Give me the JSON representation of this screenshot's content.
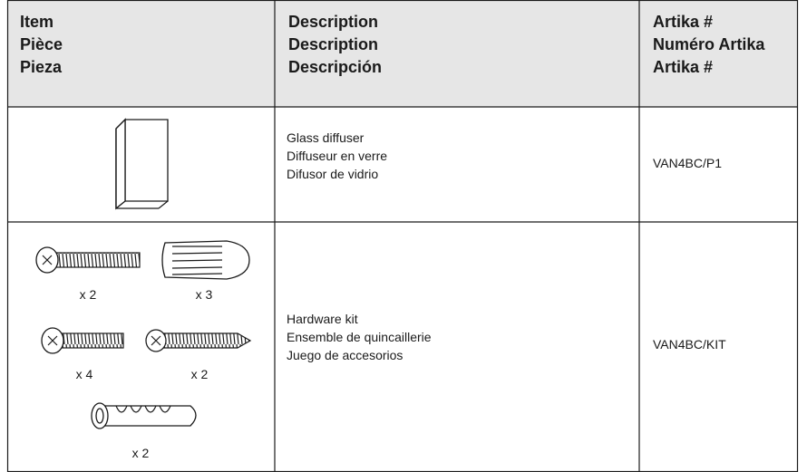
{
  "header": {
    "columns": [
      [
        "Item",
        "Pièce",
        "Pieza"
      ],
      [
        "Description",
        "Description",
        "Descripción"
      ],
      [
        "Artika #",
        "Numéro Artika",
        "Artika #"
      ]
    ]
  },
  "rows": [
    {
      "description": [
        "Glass diffuser",
        "Diffuseur en verre",
        "Difusor de vidrio"
      ],
      "part_number": "VAN4BC/P1"
    },
    {
      "quantities": [
        "x 2",
        "x 3",
        "x 4",
        "x 2",
        "x 2"
      ],
      "description": [
        "Hardware kit",
        "Ensemble de quincaillerie",
        "Juego de accesorios"
      ],
      "part_number": "VAN4BC/KIT"
    }
  ]
}
